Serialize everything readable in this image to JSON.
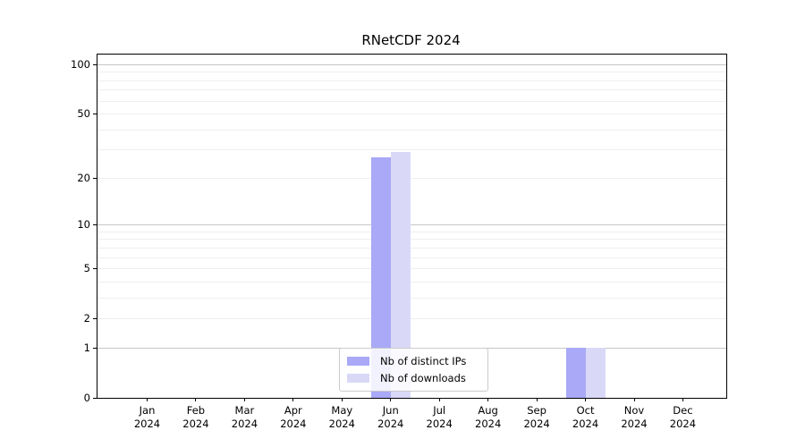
{
  "chart_data": {
    "type": "bar",
    "title": "RNetCDF 2024",
    "months": [
      "Jan",
      "Feb",
      "Mar",
      "Apr",
      "May",
      "Jun",
      "Jul",
      "Aug",
      "Sep",
      "Oct",
      "Nov",
      "Dec"
    ],
    "year": "2024",
    "series": [
      {
        "name": "Nb of distinct IPs",
        "color": "#a9a9f7",
        "values": [
          0,
          0,
          0,
          0,
          0,
          27,
          0,
          0,
          0,
          1,
          0,
          0
        ]
      },
      {
        "name": "Nb of downloads",
        "color": "#d9d9f7",
        "values": [
          0,
          0,
          0,
          0,
          0,
          29,
          0,
          0,
          0,
          1,
          0,
          0
        ]
      }
    ],
    "yticks": [
      100,
      50,
      20,
      10,
      5,
      2,
      1,
      0
    ],
    "yscale": "log1p",
    "ylim": [
      0,
      100
    ],
    "grid": {
      "major_lines": [
        100,
        10,
        1
      ],
      "minor_lines": [
        90,
        80,
        70,
        60,
        50,
        40,
        30,
        20,
        9,
        8,
        7,
        6,
        5,
        4,
        3,
        2
      ]
    },
    "legend_position": "bottom-center-inside",
    "colors": {
      "axis": "#000000",
      "gridline_major": "#c6c6c6",
      "gridline_minor": "#eeeeee",
      "legend_border": "#cbcbcb",
      "background": "#ffffff"
    }
  }
}
